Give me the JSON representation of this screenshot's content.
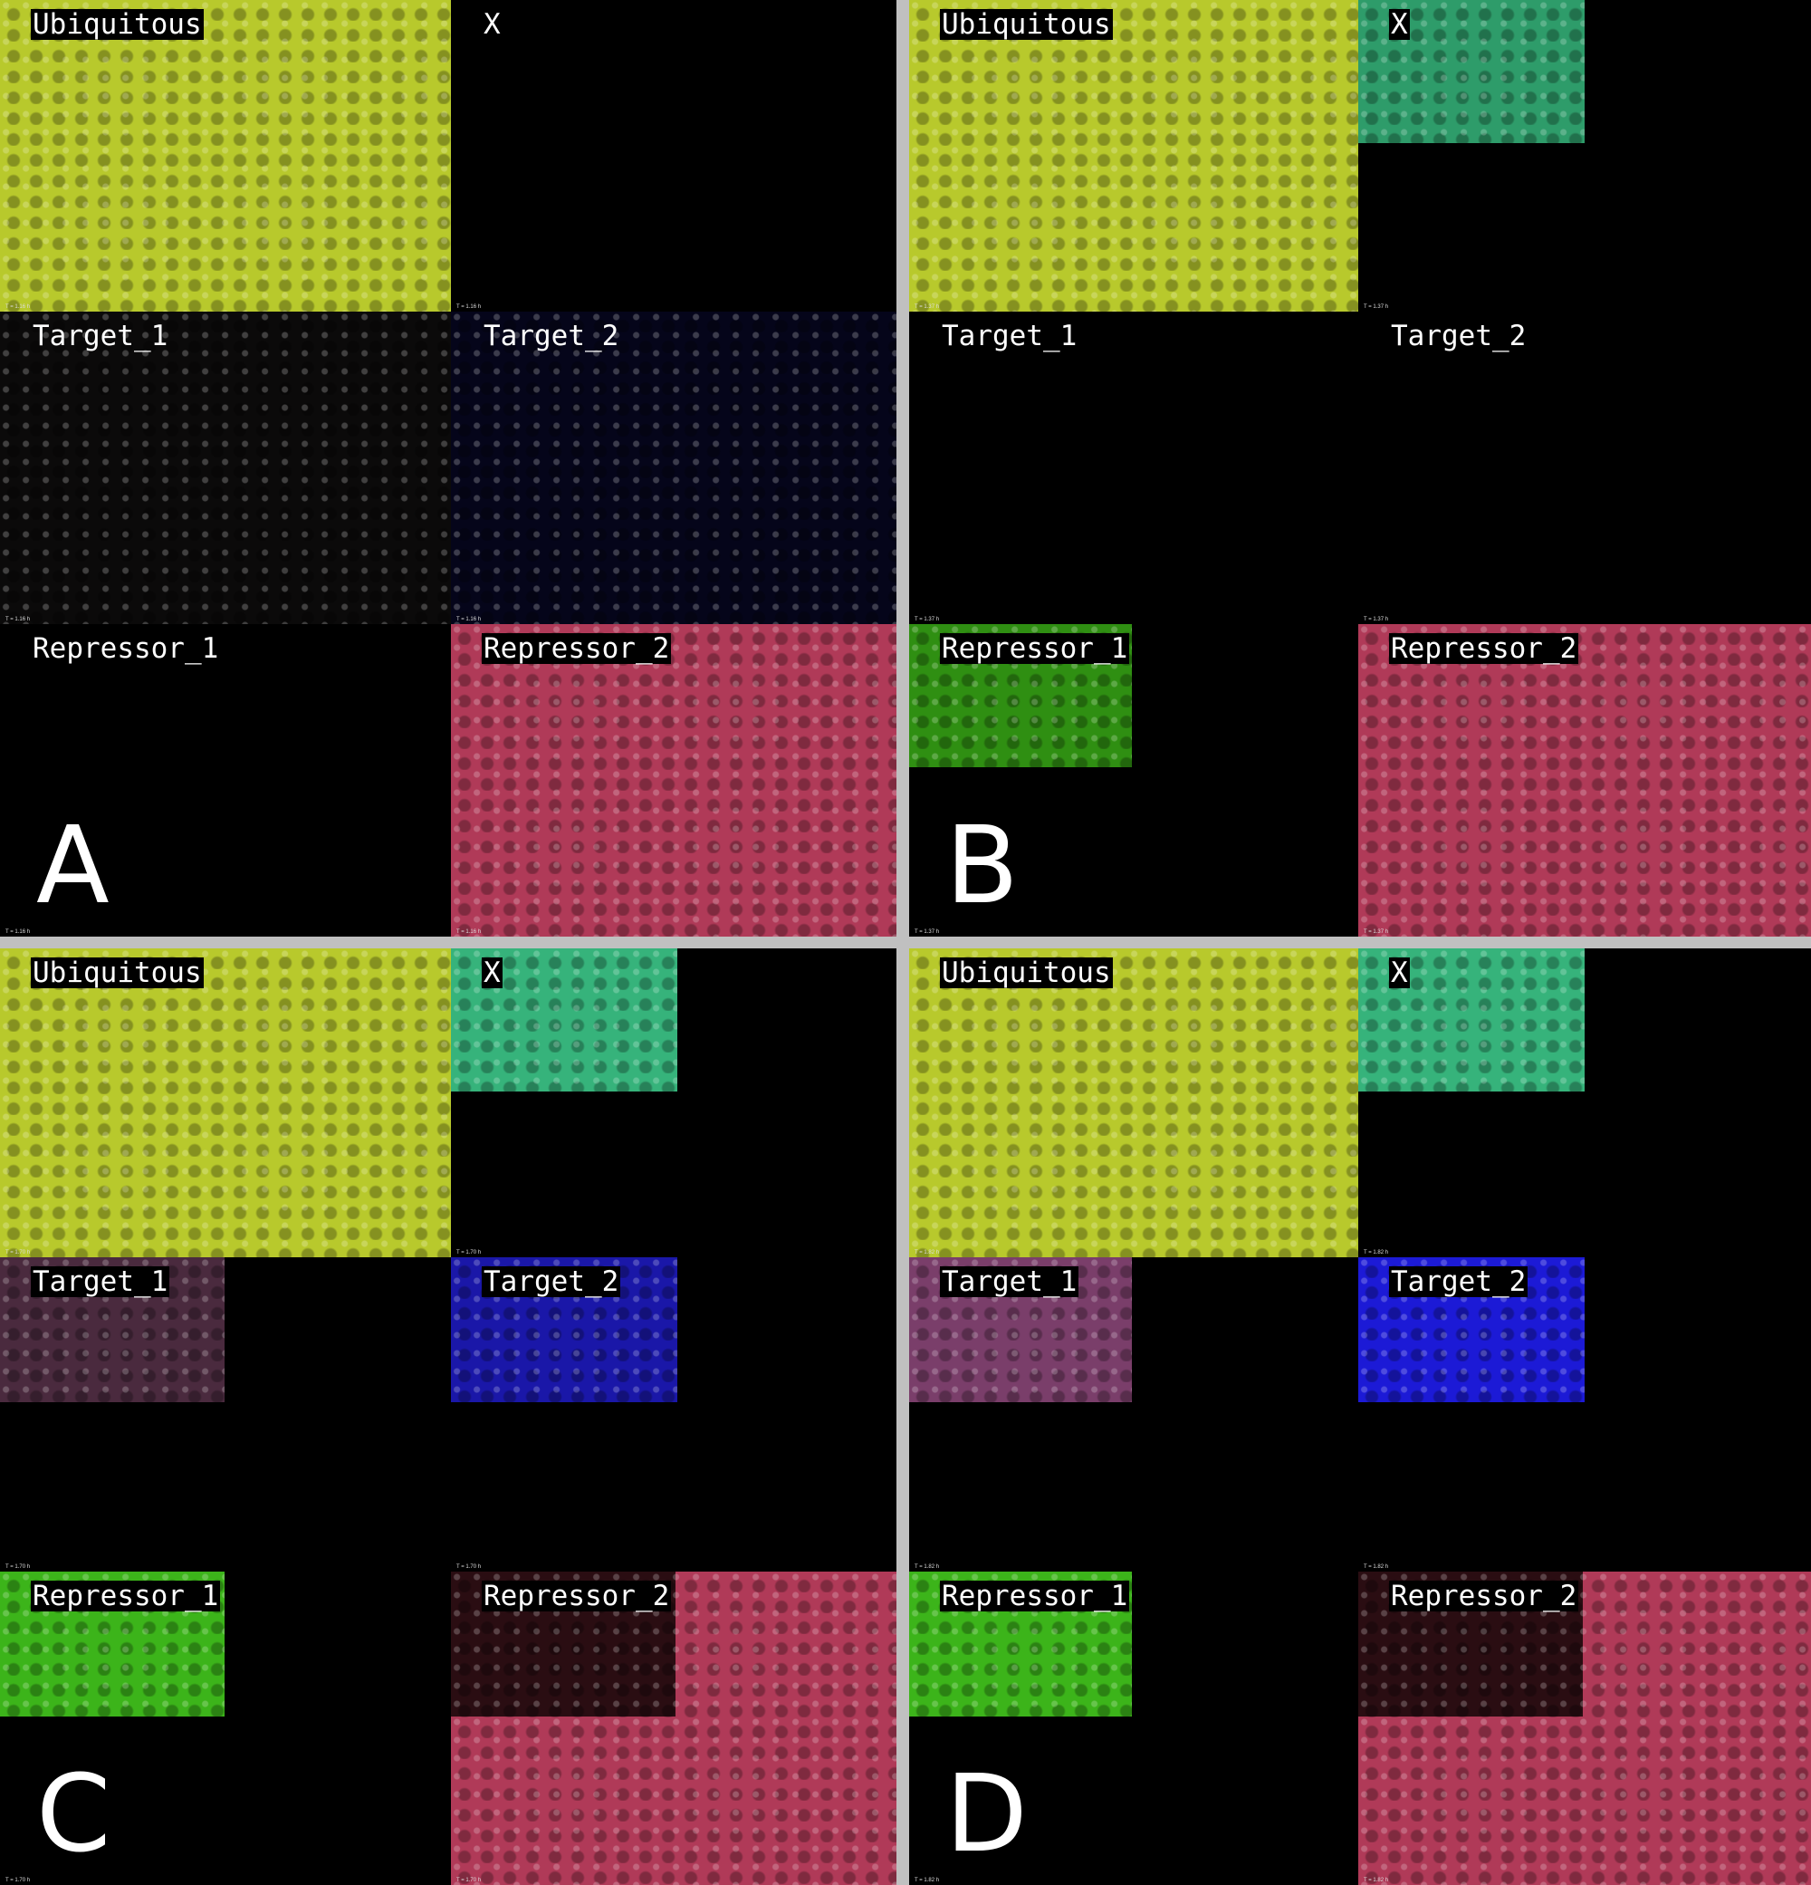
{
  "labels": {
    "ubiquitous": "Ubiquitous",
    "x": "X",
    "target_1": "Target_1",
    "target_2": "Target_2",
    "repressor_1": "Repressor_1",
    "repressor_2": "Repressor_2"
  },
  "quadrants": {
    "a": {
      "letter": "A",
      "time": "T = 1.16 h"
    },
    "b": {
      "letter": "B",
      "time": "T = 1.37 h"
    },
    "c": {
      "letter": "C",
      "time": "T = 1.70 h"
    },
    "d": {
      "letter": "D",
      "time": "T = 1.82 h"
    }
  },
  "colors": {
    "ubiquitous": "#b8c92c",
    "x": "#36b37b",
    "target_1": "#7a3e6a",
    "target_2": "#1c1ad6",
    "repressor_1": "#3cb41a",
    "repressor_2": "#b03a58",
    "divider": "#c0c0c0"
  }
}
